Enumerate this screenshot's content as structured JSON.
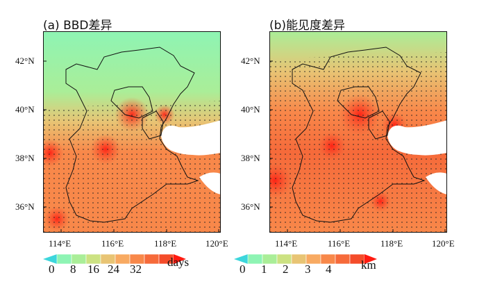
{
  "panels": [
    {
      "title": "(a) BBD差异",
      "lat_ticks": [
        "42°N",
        "40°N",
        "38°N",
        "36°N"
      ],
      "lon_ticks": [
        "114°E",
        "116°E",
        "118°E",
        "120°E"
      ],
      "colorbar": {
        "labels": [
          "0",
          "8",
          "16",
          "24",
          "32"
        ],
        "unit": "days"
      }
    },
    {
      "title": "(b)能见度差异",
      "lat_ticks": [
        "42°N",
        "40°N",
        "38°N",
        "36°N"
      ],
      "lon_ticks": [
        "114°E",
        "116°E",
        "118°E",
        "120°E"
      ],
      "colorbar": {
        "labels": [
          "0",
          "1",
          "2",
          "3",
          "4"
        ],
        "unit": "km"
      }
    }
  ],
  "palette": [
    "#3cd6dc",
    "#8ef4b4",
    "#aaee98",
    "#cce282",
    "#e8c474",
    "#f8aa62",
    "#f8884a",
    "#f66a3a",
    "#f44c2a",
    "#ff1a10"
  ]
}
